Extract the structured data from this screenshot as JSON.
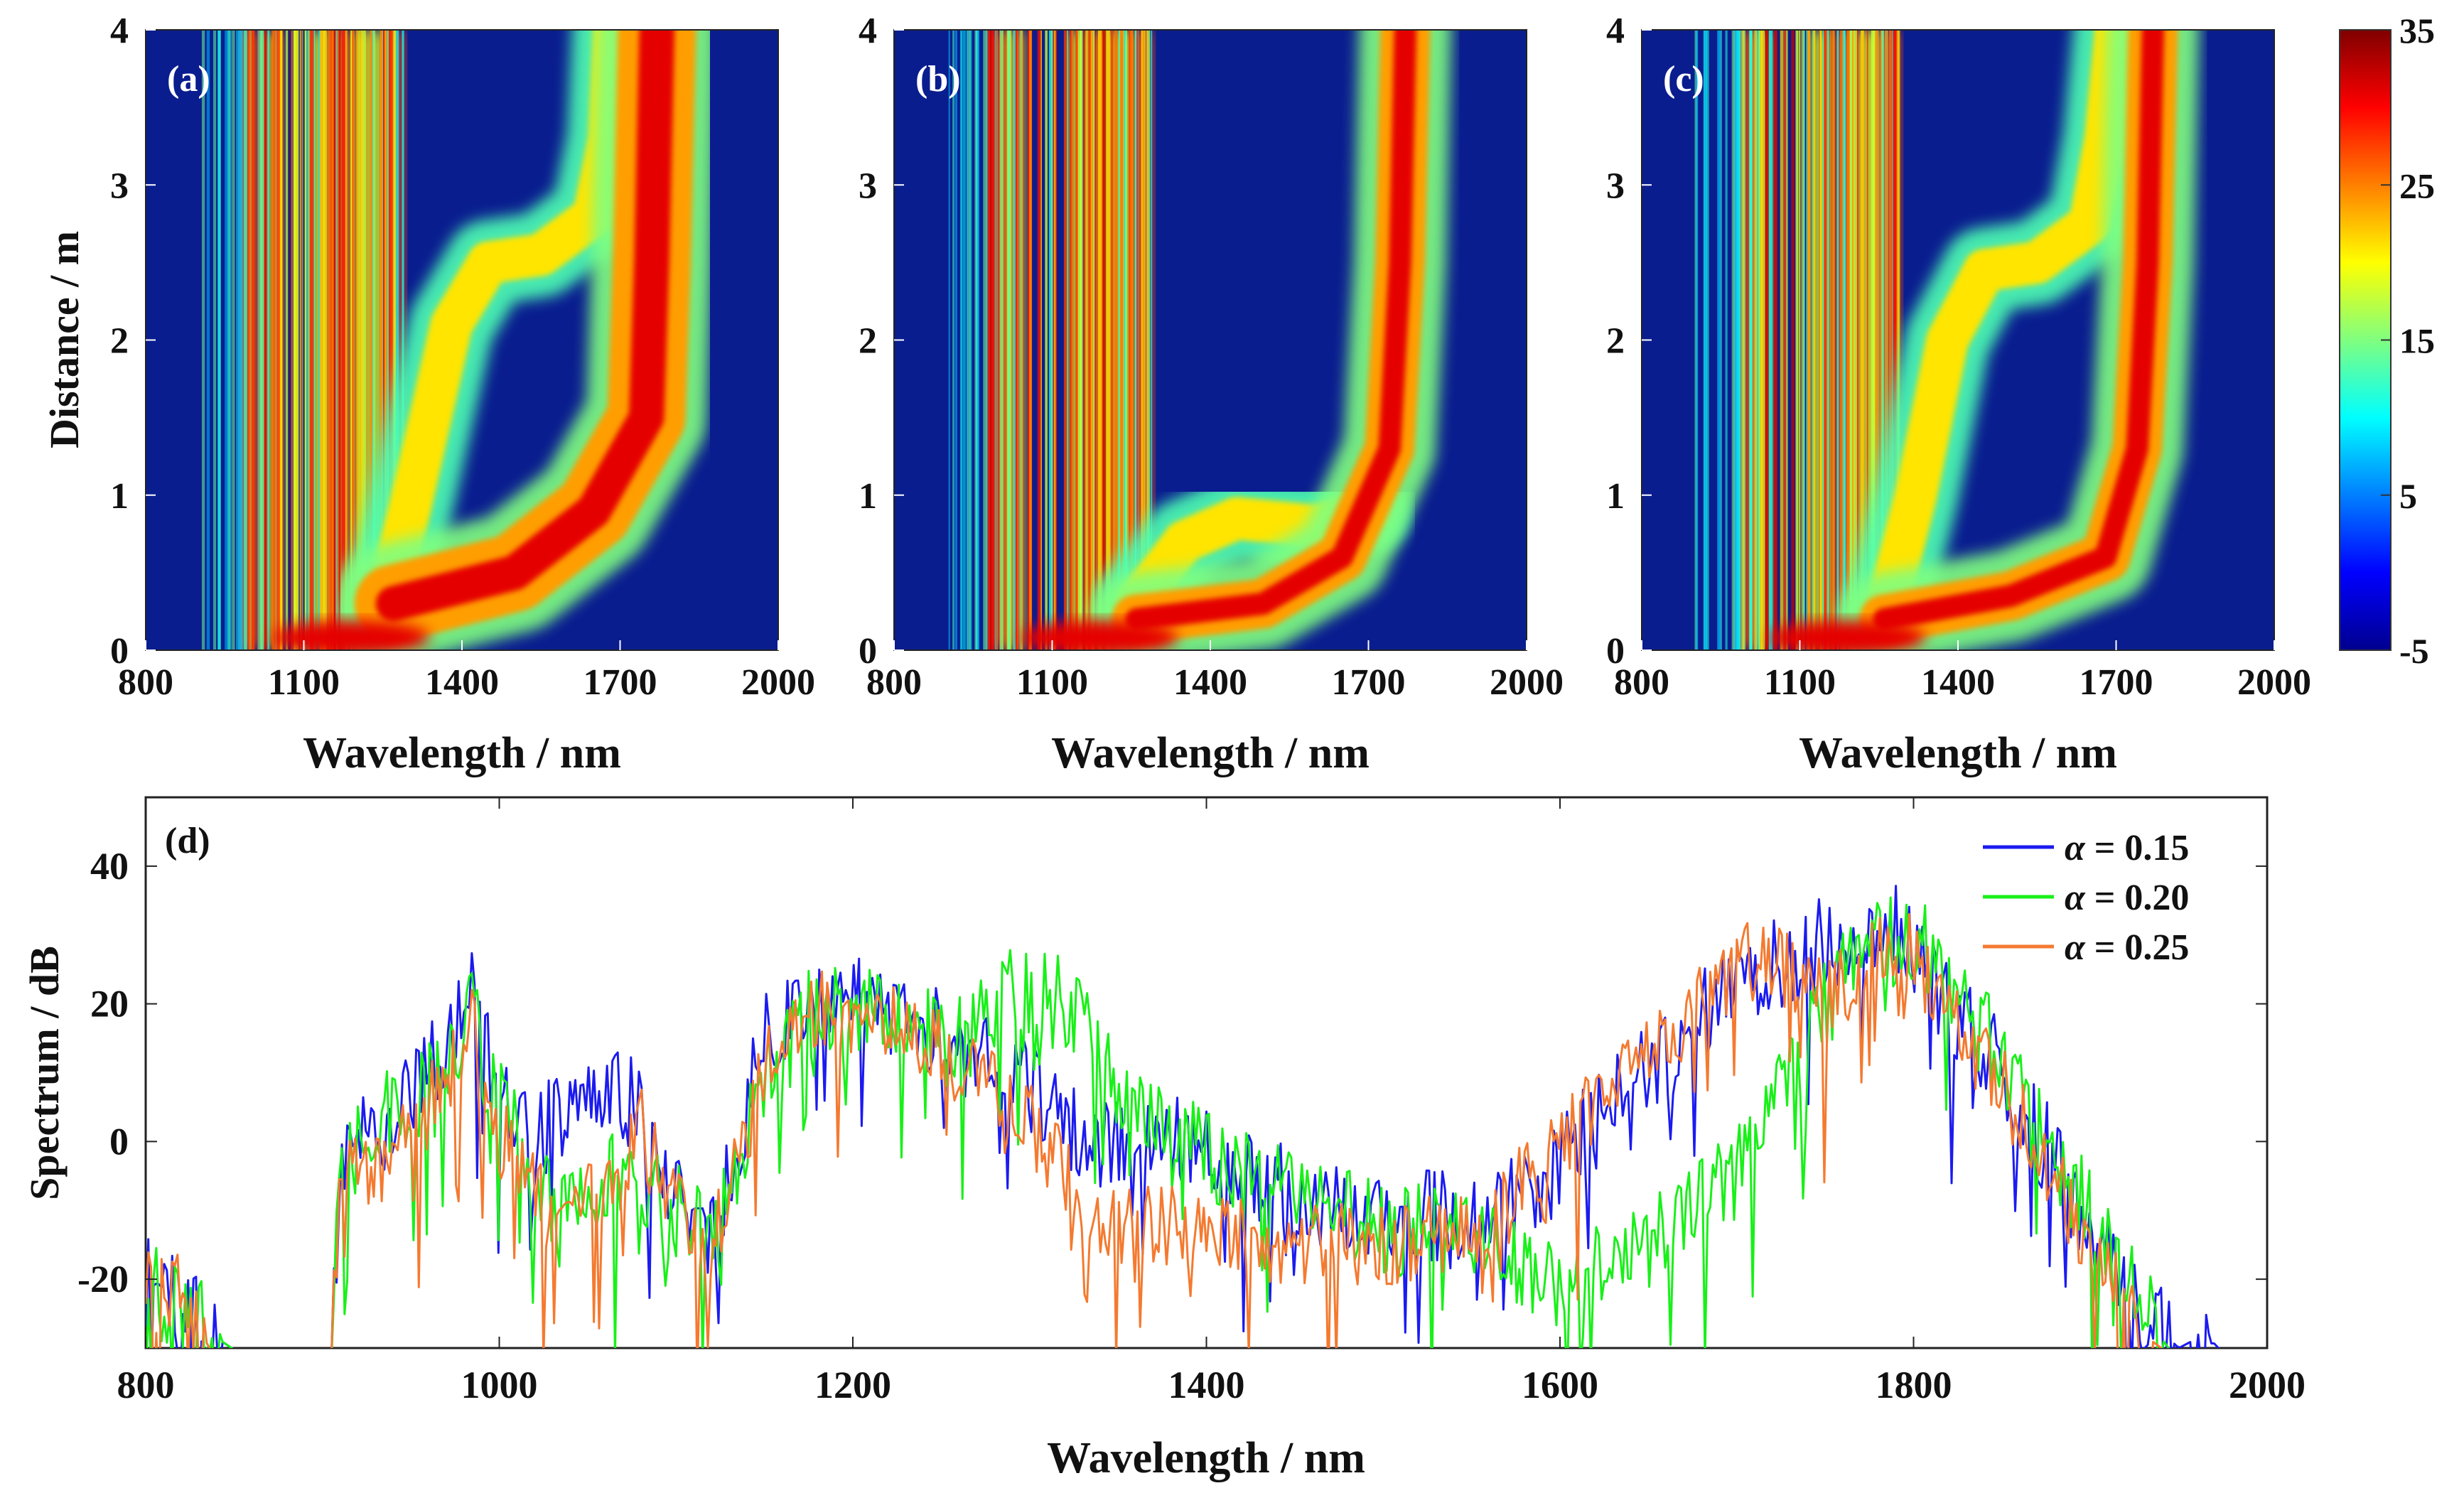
{
  "colors": {
    "alpha_015": "#1b1bf0",
    "alpha_020": "#19f019",
    "alpha_025": "#f47a30",
    "background_blue": "#0a1d8f"
  },
  "chart_data": [
    {
      "id": "a",
      "type": "heatmap",
      "panel_label": "(a)",
      "xlabel": "Wavelength / nm",
      "ylabel": "Distance / m",
      "xlim": [
        800,
        2000
      ],
      "ylim": [
        0,
        4
      ],
      "xticks": [
        "800",
        "1100",
        "1400",
        "1700",
        "2000"
      ],
      "yticks": [
        "0",
        "1",
        "2",
        "3",
        "4"
      ],
      "features": {
        "pump_bands": [
          1000,
          1040,
          1130,
          1170,
          1210,
          1240,
          1270
        ],
        "dispersive_wave_lower": [
          [
            1250,
            0.2
          ],
          [
            1300,
            0.9
          ],
          [
            1380,
            2.1
          ],
          [
            1450,
            2.5
          ],
          [
            1550,
            2.55
          ],
          [
            1650,
            2.8
          ],
          [
            1680,
            3.3
          ],
          [
            1690,
            4.0
          ]
        ],
        "soliton_upper": [
          [
            1270,
            0.3
          ],
          [
            1500,
            0.5
          ],
          [
            1650,
            0.9
          ],
          [
            1750,
            1.5
          ],
          [
            1760,
            2.5
          ],
          [
            1770,
            4.0
          ]
        ],
        "soliton_width": 110
      }
    },
    {
      "id": "b",
      "type": "heatmap",
      "panel_label": "(b)",
      "xlabel": "Wavelength / nm",
      "ylabel": "",
      "xlim": [
        800,
        2000
      ],
      "ylim": [
        0,
        4
      ],
      "xticks": [
        "800",
        "1100",
        "1400",
        "1700",
        "2000"
      ],
      "yticks": [
        "0",
        "1",
        "2",
        "3",
        "4"
      ],
      "features": {
        "pump_bands": [
          1000,
          1030,
          1150,
          1180,
          1210,
          1240,
          1270
        ],
        "dispersive_wave_lower": [
          [
            1260,
            0.3
          ],
          [
            1350,
            0.7
          ],
          [
            1450,
            0.85
          ],
          [
            1600,
            0.8
          ],
          [
            1700,
            0.9
          ]
        ],
        "soliton_upper": [
          [
            1260,
            0.2
          ],
          [
            1500,
            0.3
          ],
          [
            1650,
            0.6
          ],
          [
            1740,
            1.3
          ],
          [
            1760,
            2.5
          ],
          [
            1770,
            4.0
          ]
        ],
        "soliton_width": 70
      }
    },
    {
      "id": "c",
      "type": "heatmap",
      "panel_label": "(c)",
      "xlabel": "Wavelength / nm",
      "ylabel": "",
      "xlim": [
        800,
        2000
      ],
      "ylim": [
        0,
        4
      ],
      "xticks": [
        "800",
        "1100",
        "1400",
        "1700",
        "2000"
      ],
      "yticks": [
        "0",
        "1",
        "2",
        "3",
        "4"
      ],
      "features": {
        "pump_bands": [
          1000,
          1030,
          1140,
          1180,
          1210,
          1240,
          1270
        ],
        "dispersive_wave_lower": [
          [
            1260,
            0.2
          ],
          [
            1320,
            1.0
          ],
          [
            1380,
            2.0
          ],
          [
            1450,
            2.45
          ],
          [
            1550,
            2.5
          ],
          [
            1650,
            2.75
          ],
          [
            1680,
            3.3
          ],
          [
            1700,
            4.0
          ]
        ],
        "soliton_upper": [
          [
            1260,
            0.2
          ],
          [
            1500,
            0.35
          ],
          [
            1680,
            0.6
          ],
          [
            1740,
            1.3
          ],
          [
            1760,
            2.5
          ],
          [
            1770,
            4.0
          ]
        ],
        "soliton_width": 70
      }
    },
    {
      "id": "colorbar",
      "type": "colorbar",
      "ylim": [
        -5,
        35
      ],
      "ticks": [
        "35",
        "25",
        "15",
        "5",
        "-5"
      ]
    },
    {
      "id": "d",
      "type": "line",
      "panel_label": "(d)",
      "xlabel": "Wavelength / nm",
      "ylabel": "Spectrum / dB",
      "xlim": [
        800,
        2000
      ],
      "ylim": [
        -30,
        50
      ],
      "xticks": [
        "800",
        "1000",
        "1200",
        "1400",
        "1600",
        "1800",
        "2000"
      ],
      "yticks": [
        "40",
        "20",
        "0",
        "-20"
      ],
      "legend": "top-right",
      "series": [
        {
          "name": "α = 0.15",
          "greek": "α",
          "label_rest": " = 0.15",
          "color_key": "alpha_015",
          "amp": 7,
          "anchors": [
            [
              800,
              -18
            ],
            [
              820,
              -25
            ],
            [
              860,
              -32
            ],
            [
              905,
              -32
            ],
            [
              910,
              -5
            ],
            [
              930,
              3
            ],
            [
              960,
              10
            ],
            [
              985,
              22
            ],
            [
              1000,
              5
            ],
            [
              1020,
              0
            ],
            [
              1050,
              8
            ],
            [
              1080,
              5
            ],
            [
              1100,
              -8
            ],
            [
              1120,
              -15
            ],
            [
              1150,
              15
            ],
            [
              1180,
              22
            ],
            [
              1220,
              18
            ],
            [
              1260,
              14
            ],
            [
              1300,
              8
            ],
            [
              1330,
              0
            ],
            [
              1400,
              0
            ],
            [
              1450,
              -8
            ],
            [
              1500,
              -10
            ],
            [
              1560,
              -12
            ],
            [
              1600,
              -2
            ],
            [
              1650,
              10
            ],
            [
              1700,
              23
            ],
            [
              1760,
              30
            ],
            [
              1790,
              31
            ],
            [
              1850,
              10
            ],
            [
              1900,
              -12
            ],
            [
              1930,
              -25
            ],
            [
              1950,
              -30
            ],
            [
              1965,
              -28
            ],
            [
              1980,
              -32
            ],
            [
              2000,
              -32
            ]
          ]
        },
        {
          "name": "α = 0.20",
          "greek": "α",
          "label_rest": " = 0.20",
          "color_key": "alpha_020",
          "amp": 7,
          "anchors": [
            [
              800,
              -20
            ],
            [
              820,
              -25
            ],
            [
              860,
              -32
            ],
            [
              905,
              -32
            ],
            [
              910,
              -5
            ],
            [
              930,
              2
            ],
            [
              960,
              8
            ],
            [
              985,
              20
            ],
            [
              1000,
              5
            ],
            [
              1030,
              -8
            ],
            [
              1060,
              -5
            ],
            [
              1100,
              -10
            ],
            [
              1120,
              -15
            ],
            [
              1150,
              10
            ],
            [
              1180,
              20
            ],
            [
              1220,
              18
            ],
            [
              1260,
              14
            ],
            [
              1290,
              22
            ],
            [
              1320,
              20
            ],
            [
              1360,
              5
            ],
            [
              1400,
              -2
            ],
            [
              1450,
              -8
            ],
            [
              1500,
              -12
            ],
            [
              1560,
              -15
            ],
            [
              1600,
              -20
            ],
            [
              1650,
              -15
            ],
            [
              1700,
              -5
            ],
            [
              1740,
              15
            ],
            [
              1770,
              28
            ],
            [
              1800,
              30
            ],
            [
              1850,
              12
            ],
            [
              1900,
              -10
            ],
            [
              1930,
              -25
            ],
            [
              1950,
              -32
            ],
            [
              2000,
              -32
            ]
          ]
        },
        {
          "name": "α = 0.25",
          "greek": "α",
          "label_rest": " = 0.25",
          "color_key": "alpha_025",
          "amp": 6,
          "anchors": [
            [
              800,
              -20
            ],
            [
              820,
              -22
            ],
            [
              840,
              -32
            ],
            [
              905,
              -32
            ],
            [
              910,
              -5
            ],
            [
              930,
              -5
            ],
            [
              960,
              5
            ],
            [
              985,
              17
            ],
            [
              1000,
              2
            ],
            [
              1030,
              -12
            ],
            [
              1060,
              -8
            ],
            [
              1080,
              2
            ],
            [
              1100,
              -10
            ],
            [
              1120,
              -15
            ],
            [
              1150,
              10
            ],
            [
              1180,
              20
            ],
            [
              1220,
              17
            ],
            [
              1260,
              12
            ],
            [
              1300,
              3
            ],
            [
              1340,
              -12
            ],
            [
              1380,
              -12
            ],
            [
              1450,
              -15
            ],
            [
              1500,
              -15
            ],
            [
              1560,
              -12
            ],
            [
              1600,
              0
            ],
            [
              1650,
              12
            ],
            [
              1700,
              26
            ],
            [
              1730,
              25
            ],
            [
              1750,
              20
            ],
            [
              1780,
              28
            ],
            [
              1790,
              30
            ],
            [
              1850,
              8
            ],
            [
              1900,
              -15
            ],
            [
              1930,
              -28
            ],
            [
              1950,
              -32
            ],
            [
              2000,
              -32
            ]
          ]
        }
      ]
    }
  ]
}
